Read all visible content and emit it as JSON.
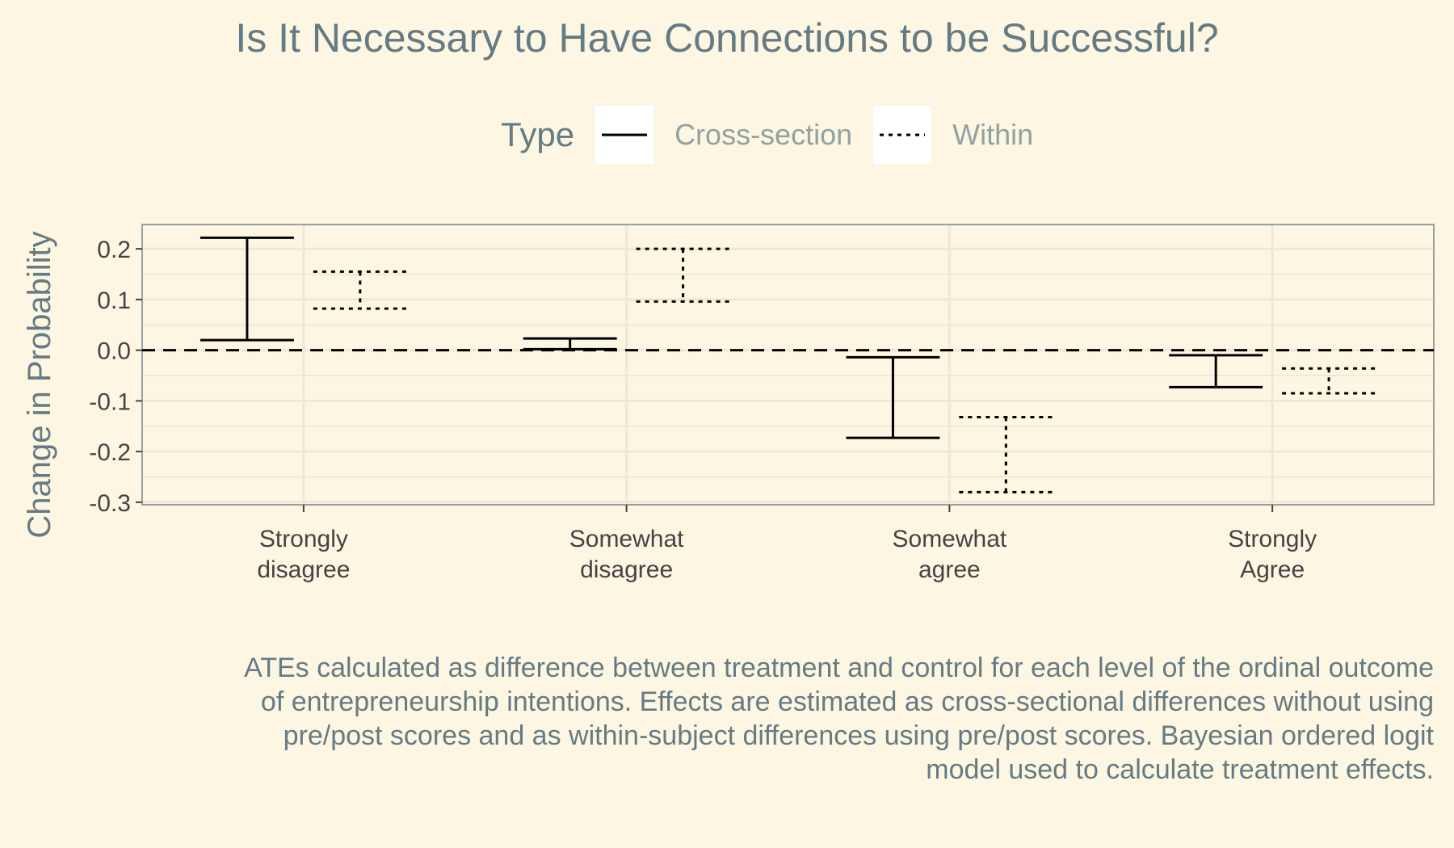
{
  "title": "Is It Necessary to Have Connections to be Successful?",
  "legend": {
    "title": "Type",
    "items": [
      {
        "label": "Cross-section",
        "style": "solid"
      },
      {
        "label": "Within",
        "style": "dotted"
      }
    ],
    "position": "top"
  },
  "caption": "ATEs calculated as difference between treatment and control for each level of the ordinal outcome of entrepreneurship intentions. Effects are estimated as cross-sectional differences without using pre/post scores and as within-subject differences using pre/post scores. Bayesian ordered logit model used to calculate treatment effects.",
  "chart_data": {
    "type": "errorbar",
    "title": "Is It Necessary to Have Connections to be Successful?",
    "xlabel": "",
    "ylabel": "Change in Probability",
    "categories": [
      [
        "Strongly",
        "disagree"
      ],
      [
        "Somewhat",
        "disagree"
      ],
      [
        "Somewhat",
        "agree"
      ],
      [
        "Strongly",
        "Agree"
      ]
    ],
    "series": [
      {
        "name": "Cross-section",
        "linestyle": "solid",
        "lower": [
          0.02,
          0.002,
          -0.173,
          -0.073
        ],
        "upper": [
          0.222,
          0.023,
          -0.014,
          -0.01
        ]
      },
      {
        "name": "Within",
        "linestyle": "dotted",
        "lower": [
          0.082,
          0.096,
          -0.28,
          -0.085
        ],
        "upper": [
          0.155,
          0.2,
          -0.132,
          -0.036
        ]
      }
    ],
    "reference_line": 0,
    "yticks": [
      0.2,
      0.1,
      0.0,
      -0.1,
      -0.2,
      -0.3
    ],
    "ytick_labels": [
      "0.2",
      "0.1",
      "0.0",
      "-0.1",
      "-0.2",
      "-0.3"
    ],
    "ylim": [
      -0.305,
      0.248
    ],
    "grid": true,
    "colors": {
      "background": "#fdf6e3",
      "panel_border": "#93a1a1",
      "grid": "#eee8d5",
      "bars": "#000000",
      "text": "#657b83"
    }
  }
}
